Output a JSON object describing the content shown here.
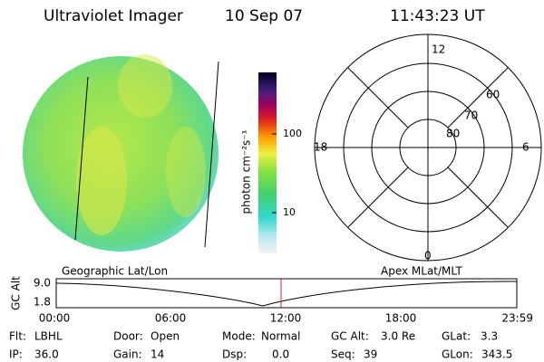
{
  "header": {
    "title": "Ultraviolet Imager",
    "date": "10 Sep 07",
    "time": "11:43:23 UT"
  },
  "colorbar": {
    "label": "photon cm⁻²s⁻¹",
    "ticks": [
      "100",
      "10"
    ]
  },
  "polar": {
    "top": "12",
    "left": "18",
    "right": "6",
    "bottom": "0",
    "rings": [
      "60",
      "70",
      "80"
    ]
  },
  "timeline": {
    "left_label": "Geographic Lat/Lon",
    "right_label": "Apex MLat/MLT",
    "y_label": "GC Alt",
    "y_ticks": [
      "9.0",
      "1.8"
    ],
    "x_ticks": [
      "00:00",
      "06:00",
      "12:00",
      "18:00",
      "23:59"
    ]
  },
  "status": [
    [
      {
        "label": "Flt:",
        "value": "LBHL"
      },
      {
        "label": "Door:",
        "value": "Open"
      },
      {
        "label": "Mode:",
        "value": "Normal"
      },
      {
        "label": "GC Alt:",
        "value": "3.0 Re"
      },
      {
        "label": "GLat:",
        "value": "3.3"
      }
    ],
    [
      {
        "label": "IP:",
        "value": "36.0"
      },
      {
        "label": "Gain:",
        "value": "14"
      },
      {
        "label": "Dsp:",
        "value": "0.0"
      },
      {
        "label": "Seq:",
        "value": "39"
      },
      {
        "label": "GLon:",
        "value": "343.5"
      }
    ]
  ]
}
